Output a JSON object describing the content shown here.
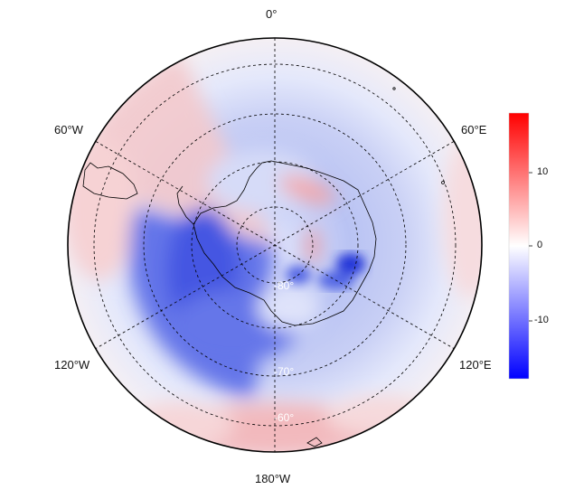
{
  "map": {
    "projection": "south-polar-stereographic",
    "lon_labels": {
      "top": "0°",
      "left_upper": "60°W",
      "right_upper": "60°E",
      "left_lower": "120°W",
      "right_lower": "120°E",
      "bottom": "180°W"
    },
    "lat_labels": [
      "-80°",
      "-70°",
      "-60°"
    ],
    "grid_line_style": "dashed"
  },
  "colorbar": {
    "ticks": [
      "10",
      "0",
      "-10"
    ],
    "range": [
      -18,
      18
    ],
    "colors": {
      "min": "#0000ff",
      "mid": "#ffffff",
      "max": "#ff0000"
    }
  }
}
